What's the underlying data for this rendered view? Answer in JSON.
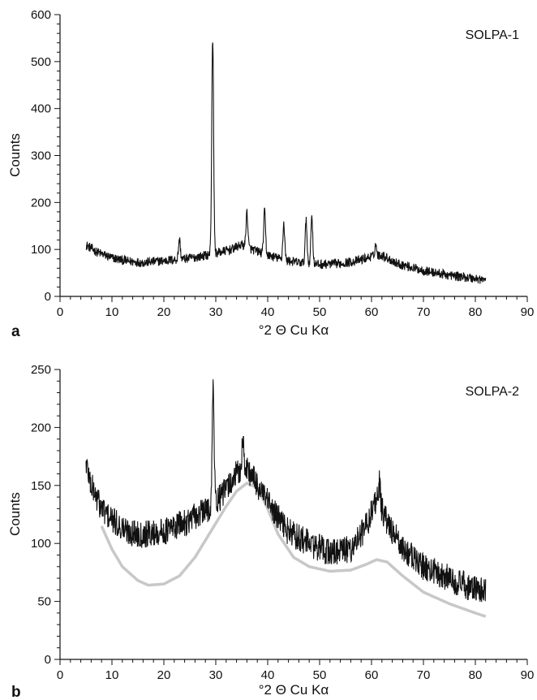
{
  "chart_data": [
    {
      "panel": "a",
      "type": "line",
      "legend_label": "SOLPA-1",
      "legend_position": "top-right",
      "xlabel": "°2 Θ Cu Kα",
      "ylabel": "Counts",
      "xlim": [
        0,
        90
      ],
      "ylim": [
        0,
        600
      ],
      "x_ticks": [
        "0",
        "10",
        "20",
        "30",
        "40",
        "50",
        "60",
        "70",
        "80",
        "90"
      ],
      "y_ticks": [
        "0",
        "100",
        "200",
        "300",
        "400",
        "500",
        "600"
      ],
      "grid": false,
      "x_range": [
        5,
        82
      ],
      "noise_amplitude": 10,
      "baseline": {
        "x": [
          5,
          7,
          10,
          13,
          16,
          20,
          24,
          27,
          30,
          33,
          35,
          37,
          40,
          43,
          46,
          50,
          54,
          57,
          60,
          62,
          65,
          70,
          75,
          80,
          82
        ],
        "y": [
          110,
          95,
          82,
          75,
          72,
          76,
          80,
          85,
          92,
          100,
          110,
          100,
          88,
          78,
          72,
          68,
          70,
          75,
          85,
          88,
          70,
          55,
          45,
          38,
          35
        ]
      },
      "peaks": [
        {
          "x": 29.4,
          "y": 550
        },
        {
          "x": 36.0,
          "y": 180
        },
        {
          "x": 39.4,
          "y": 180
        },
        {
          "x": 43.1,
          "y": 155
        },
        {
          "x": 47.4,
          "y": 160
        },
        {
          "x": 48.5,
          "y": 170
        },
        {
          "x": 23.0,
          "y": 120
        },
        {
          "x": 60.8,
          "y": 110
        }
      ]
    },
    {
      "panel": "b",
      "type": "line",
      "legend_label": "SOLPA-2",
      "legend_position": "top-right",
      "xlabel": "°2 Θ Cu Kα",
      "ylabel": "Counts",
      "xlim": [
        0,
        90
      ],
      "ylim": [
        0,
        250
      ],
      "x_ticks": [
        "0",
        "10",
        "20",
        "30",
        "40",
        "50",
        "60",
        "70",
        "80",
        "90"
      ],
      "y_ticks": [
        "0",
        "50",
        "100",
        "150",
        "200",
        "250"
      ],
      "grid": false,
      "x_range": [
        5,
        82
      ],
      "noise_amplitude": 12,
      "baseline": {
        "x": [
          5,
          6,
          8,
          10,
          13,
          16,
          20,
          24,
          28,
          31,
          34,
          36,
          38,
          41,
          44,
          48,
          52,
          56,
          59,
          61,
          63,
          66,
          70,
          75,
          80,
          82
        ],
        "y": [
          170,
          150,
          130,
          120,
          110,
          108,
          110,
          118,
          128,
          140,
          160,
          165,
          150,
          128,
          110,
          100,
          92,
          95,
          115,
          140,
          118,
          95,
          80,
          70,
          60,
          58
        ]
      },
      "peaks": [
        {
          "x": 29.5,
          "y": 235
        },
        {
          "x": 35.2,
          "y": 190
        },
        {
          "x": 61.5,
          "y": 152
        }
      ],
      "fit_curve": {
        "name": "",
        "x": [
          8,
          10,
          12,
          15,
          17,
          20,
          23,
          26,
          29,
          32,
          34,
          36,
          38,
          40,
          42,
          45,
          48,
          52,
          56,
          59,
          61,
          63,
          66,
          70,
          75,
          80,
          82
        ],
        "y": [
          115,
          95,
          80,
          68,
          64,
          65,
          72,
          88,
          110,
          132,
          145,
          152,
          148,
          130,
          108,
          88,
          80,
          76,
          77,
          82,
          86,
          84,
          72,
          58,
          48,
          40,
          37
        ]
      }
    }
  ]
}
